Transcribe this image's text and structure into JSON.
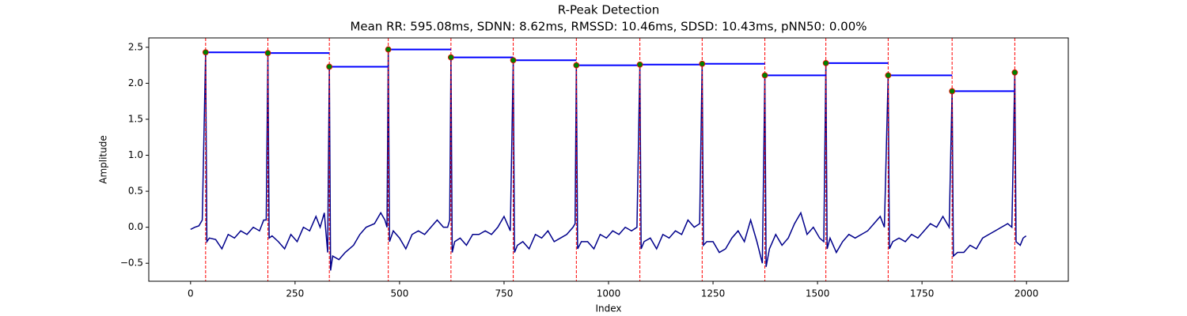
{
  "chart_data": {
    "type": "line",
    "title": "R-Peak Detection",
    "subtitle": "Mean RR: 595.08ms, SDNN: 8.62ms, RMSSD: 10.46ms, SDSD: 10.43ms, pNN50: 0.00%",
    "xlabel": "Index",
    "ylabel": "Amplitude",
    "color": "#00008b",
    "x": [
      0,
      10,
      20,
      28,
      36,
      39,
      45,
      60,
      75,
      90,
      105,
      120,
      135,
      150,
      165,
      175,
      181,
      185,
      188,
      195,
      210,
      225,
      240,
      255,
      270,
      285,
      300,
      310,
      320,
      328,
      332,
      335,
      340,
      355,
      370,
      390,
      405,
      420,
      440,
      455,
      465,
      470,
      473,
      476,
      485,
      500,
      515,
      530,
      545,
      560,
      575,
      590,
      605,
      615,
      620,
      623,
      626,
      632,
      645,
      660,
      675,
      690,
      705,
      720,
      735,
      750,
      765,
      772,
      775,
      782,
      795,
      810,
      825,
      840,
      855,
      870,
      885,
      900,
      915,
      920,
      923,
      926,
      935,
      950,
      965,
      980,
      995,
      1010,
      1025,
      1040,
      1055,
      1068,
      1075,
      1078,
      1085,
      1100,
      1115,
      1130,
      1145,
      1160,
      1175,
      1190,
      1205,
      1218,
      1224,
      1227,
      1235,
      1250,
      1265,
      1280,
      1295,
      1310,
      1325,
      1340,
      1355,
      1368,
      1374,
      1377,
      1385,
      1400,
      1415,
      1430,
      1445,
      1460,
      1475,
      1490,
      1505,
      1515,
      1520,
      1523,
      1530,
      1545,
      1560,
      1575,
      1590,
      1605,
      1620,
      1635,
      1650,
      1660,
      1669,
      1672,
      1680,
      1695,
      1710,
      1725,
      1740,
      1755,
      1770,
      1785,
      1800,
      1815,
      1822,
      1825,
      1835,
      1850,
      1865,
      1880,
      1895,
      1910,
      1925,
      1940,
      1955,
      1965,
      1972,
      1975,
      1985,
      1992,
      1999
    ],
    "values": [
      -0.03,
      0.0,
      0.02,
      0.1,
      2.43,
      -0.2,
      -0.15,
      -0.17,
      -0.3,
      -0.1,
      -0.15,
      -0.05,
      -0.1,
      0.0,
      -0.05,
      0.1,
      0.1,
      2.42,
      -0.15,
      -0.12,
      -0.2,
      -0.3,
      -0.1,
      -0.2,
      0.0,
      -0.05,
      0.15,
      0.0,
      0.2,
      -0.35,
      2.23,
      -0.6,
      -0.4,
      -0.45,
      -0.35,
      -0.25,
      -0.1,
      0.0,
      0.05,
      0.2,
      0.1,
      0.0,
      2.47,
      -0.2,
      -0.05,
      -0.15,
      -0.3,
      -0.1,
      -0.05,
      -0.1,
      0.0,
      0.1,
      0.0,
      0.0,
      0.1,
      2.36,
      -0.35,
      -0.2,
      -0.15,
      -0.25,
      -0.1,
      -0.1,
      -0.05,
      -0.1,
      0.0,
      0.15,
      -0.05,
      2.32,
      -0.35,
      -0.25,
      -0.2,
      -0.3,
      -0.1,
      -0.15,
      -0.05,
      -0.2,
      -0.15,
      -0.1,
      0.0,
      0.05,
      2.25,
      -0.3,
      -0.2,
      -0.2,
      -0.3,
      -0.1,
      -0.15,
      -0.05,
      -0.1,
      0.0,
      -0.05,
      0.0,
      2.26,
      -0.3,
      -0.2,
      -0.15,
      -0.3,
      -0.1,
      -0.15,
      -0.05,
      -0.1,
      0.1,
      0.0,
      0.05,
      2.27,
      -0.25,
      -0.2,
      -0.2,
      -0.35,
      -0.3,
      -0.15,
      -0.05,
      -0.2,
      0.1,
      -0.2,
      -0.5,
      2.11,
      -0.55,
      -0.3,
      -0.1,
      -0.25,
      -0.15,
      0.05,
      0.2,
      -0.1,
      0.0,
      -0.15,
      -0.2,
      2.28,
      -0.3,
      -0.15,
      -0.35,
      -0.2,
      -0.1,
      -0.15,
      -0.1,
      -0.05,
      0.05,
      0.15,
      0.0,
      2.11,
      -0.3,
      -0.2,
      -0.15,
      -0.2,
      -0.1,
      -0.15,
      -0.05,
      0.05,
      0.0,
      0.15,
      0.0,
      1.89,
      -0.4,
      -0.35,
      -0.35,
      -0.25,
      -0.3,
      -0.15,
      -0.1,
      -0.05,
      0.0,
      0.05,
      0.0,
      2.15,
      -0.2,
      -0.25,
      -0.15,
      -0.12
    ],
    "peaks": {
      "x": [
        36,
        185,
        332,
        473,
        623,
        772,
        923,
        1075,
        1224,
        1374,
        1520,
        1669,
        1822,
        1972
      ],
      "values": [
        2.43,
        2.42,
        2.23,
        2.47,
        2.36,
        2.32,
        2.25,
        2.26,
        2.27,
        2.11,
        2.28,
        2.11,
        1.89,
        2.15
      ]
    },
    "peak_color": "#008000",
    "peak_edge_color": "#ff0000",
    "peak_line_color": "#ff0000",
    "rr_line_color": "#0000ff",
    "xlim": [
      -100,
      2100
    ],
    "ylim": [
      -0.75,
      2.63
    ],
    "xticks": [
      0,
      250,
      500,
      750,
      1000,
      1250,
      1500,
      1750,
      2000
    ],
    "yticks": [
      {
        "value": -0.5,
        "label": "−0.5"
      },
      {
        "value": 0,
        "label": "0.0"
      },
      0.5,
      {
        "value": 1,
        "label": "1.0"
      },
      1.5,
      {
        "value": 2,
        "label": "2.0"
      },
      2.5
    ]
  }
}
